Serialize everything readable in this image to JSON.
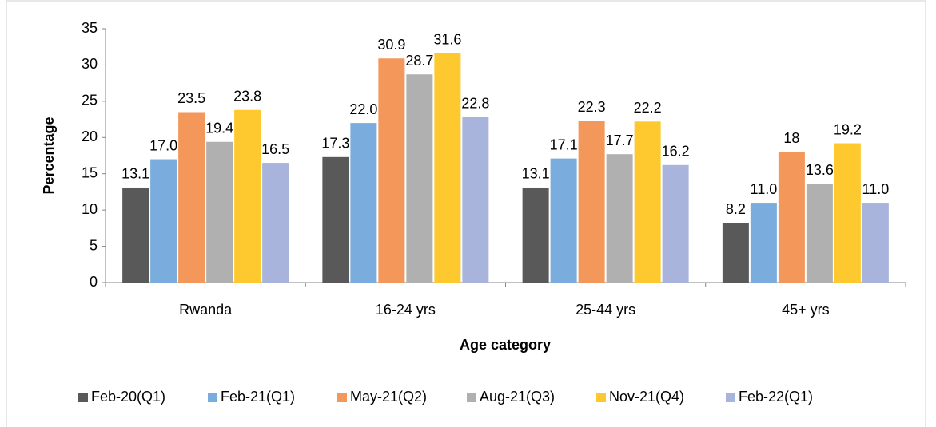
{
  "chart_data": {
    "type": "bar",
    "y_label": "Percentage",
    "x_label": "Age category",
    "categories": [
      "Rwanda",
      "16-24 yrs",
      "25-44 yrs",
      "45+ yrs"
    ],
    "series": [
      {
        "name": "Feb-20(Q1)",
        "color": "#595959",
        "values": [
          13.1,
          17.3,
          13.1,
          8.2
        ]
      },
      {
        "name": "Feb-21(Q1)",
        "color": "#7aaddd",
        "values": [
          17,
          22,
          17.1,
          11
        ],
        "value_labels": [
          "17.0",
          "22.0",
          "17.1",
          "11.0"
        ]
      },
      {
        "name": "May-21(Q2)",
        "color": "#f4975a",
        "values": [
          23.5,
          30.9,
          22.3,
          18
        ]
      },
      {
        "name": "Aug-21(Q3)",
        "color": "#b0b0b0",
        "values": [
          19.4,
          28.7,
          17.7,
          13.6
        ]
      },
      {
        "name": "Nov-21(Q4)",
        "color": "#fdc92e",
        "values": [
          23.8,
          31.6,
          22.2,
          19.2
        ]
      },
      {
        "name": "Feb-22(Q1)",
        "color": "#a8b4dc",
        "values": [
          16.5,
          22.8,
          16.2,
          11
        ],
        "value_labels": [
          "16.5",
          "22.8",
          "16.2",
          "11.0"
        ]
      }
    ],
    "ylim": [
      0,
      35
    ],
    "yticks": [
      0,
      5,
      10,
      15,
      20,
      25,
      30,
      35
    ],
    "grid": false,
    "legend": "bottom"
  }
}
